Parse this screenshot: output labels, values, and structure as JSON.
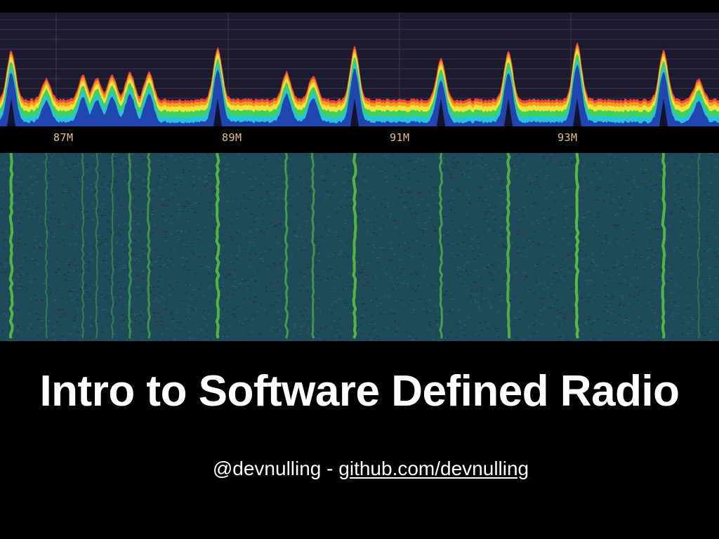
{
  "slide": {
    "title": "Intro to Software Defined Radio",
    "handle": "@devnulling",
    "separator": " - ",
    "link_text": "github.com/devnulling"
  },
  "spectrum": {
    "freq_labels": [
      "87M",
      "89M",
      "91M",
      "93M"
    ],
    "colors": {
      "background": "#1c1a2e",
      "gridline": "#3a3650",
      "peak_red": "#e8443a",
      "orange": "#f79a1e",
      "yellow": "#f4e23a",
      "green": "#3fd25a",
      "cyan": "#27c3d6",
      "blue": "#2146b0",
      "label": "#e8c27a"
    }
  },
  "waterfall": {
    "colors": {
      "background": "#1f4a5a",
      "signal": "#5fd03a"
    }
  }
}
